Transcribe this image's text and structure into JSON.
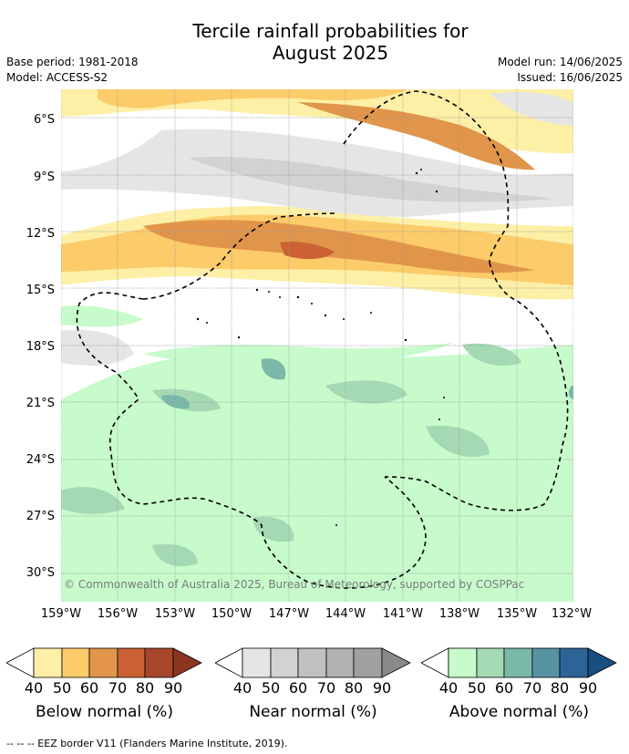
{
  "title": "Tercile rainfall probabilities for\nAugust 2025",
  "base_period": "Base period: 1981-2018",
  "model": "Model: ACCESS-S2",
  "model_run": "Model run: 14/06/2025",
  "issued": "Issued: 16/06/2025",
  "credit": "© Commonwealth of Australia 2025, Bureau of Meteorology, supported by COSPPac",
  "eez_note": "--  --  -- EEZ border V11 (Flanders Marine Institute, 2019).",
  "map": {
    "lon_range": [
      -159,
      -132
    ],
    "lat_range": [
      -31.5,
      -4.5
    ],
    "lat_ticks": [
      "6°S",
      "9°S",
      "12°S",
      "15°S",
      "18°S",
      "21°S",
      "24°S",
      "27°S",
      "30°S"
    ],
    "lon_ticks": [
      "159°W",
      "156°W",
      "153°W",
      "150°W",
      "147°W",
      "144°W",
      "141°W",
      "138°W",
      "135°W",
      "132°W"
    ],
    "grid": true
  },
  "colorbars": [
    {
      "label": "Below normal (%)",
      "ticks": [
        "40",
        "50",
        "60",
        "70",
        "80",
        "90"
      ],
      "colors": [
        "#fdefa6",
        "#fccb6a",
        "#e0954a",
        "#cb6134",
        "#a7462b"
      ],
      "low_color": "#ffffff",
      "high_color": "#8c3520"
    },
    {
      "label": "Near normal (%)",
      "ticks": [
        "40",
        "50",
        "60",
        "70",
        "80",
        "90"
      ],
      "colors": [
        "#e5e5e5",
        "#d2d2d2",
        "#c0c0c0",
        "#b2b2b2",
        "#a0a0a0"
      ],
      "low_color": "#ffffff",
      "high_color": "#8a8a8a"
    },
    {
      "label": "Above normal (%)",
      "ticks": [
        "40",
        "50",
        "60",
        "70",
        "80",
        "90"
      ],
      "colors": [
        "#c7fbcb",
        "#a5d9b4",
        "#7ab8a8",
        "#5893a3",
        "#2d6497"
      ],
      "low_color": "#ffffff",
      "high_color": "#1a4d80"
    }
  ]
}
